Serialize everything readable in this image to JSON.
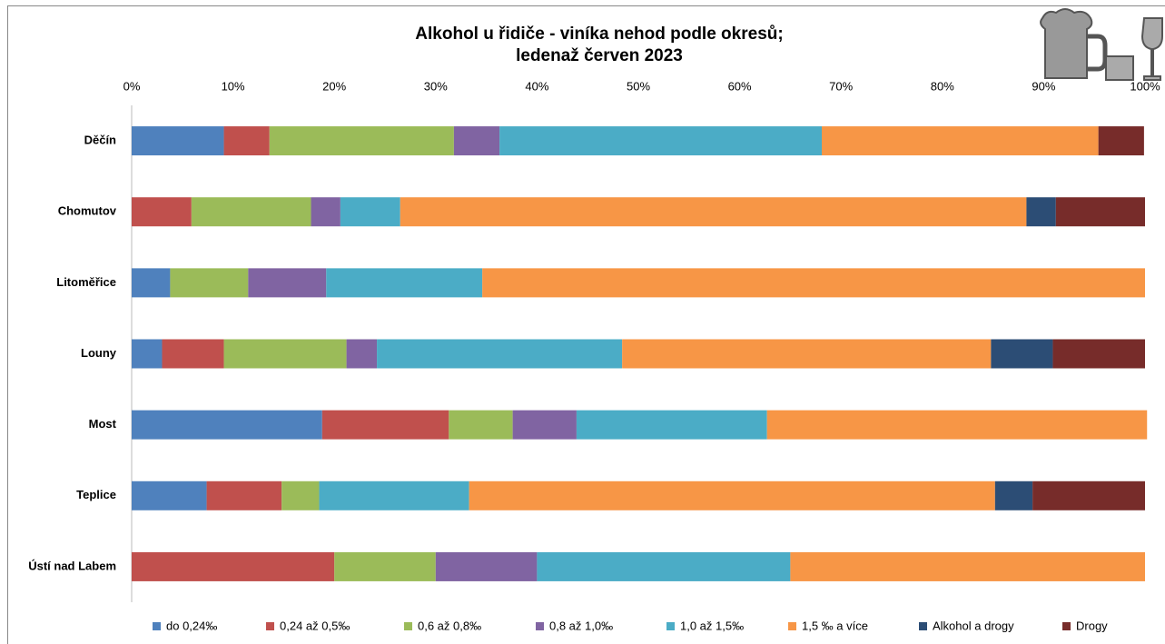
{
  "chart_data": {
    "type": "stacked-bar-horizontal",
    "title": "Alkohol u řidiče - viníka nehod podle okresů;",
    "subtitle": "ledenaž červen 2023",
    "categories": [
      "Děčín",
      "Chomutov",
      "Litoměřice",
      "Louny",
      "Most",
      "Teplice",
      "Ústí nad Labem"
    ],
    "series": [
      {
        "name": "do 0,24‰",
        "color": "#4f81bd",
        "values": [
          9.1,
          0,
          3.8,
          3.0,
          18.8,
          7.4,
          0
        ]
      },
      {
        "name": "0,24 až 0,5‰",
        "color": "#c0504d",
        "values": [
          4.5,
          5.9,
          0,
          6.1,
          12.5,
          7.4,
          20
        ]
      },
      {
        "name": "0,6 až 0,8‰",
        "color": "#9bbb59",
        "values": [
          18.2,
          11.8,
          7.7,
          12.1,
          6.3,
          3.7,
          10
        ]
      },
      {
        "name": "0,8 až 1,0‰",
        "color": "#8064a2",
        "values": [
          4.5,
          2.9,
          7.7,
          3.0,
          6.3,
          0,
          10
        ]
      },
      {
        "name": "1,0 až 1,5‰",
        "color": "#4bacc6",
        "values": [
          31.8,
          5.9,
          15.4,
          24.2,
          18.8,
          14.8,
          25
        ]
      },
      {
        "name": "1,5 ‰ a více",
        "color": "#f79646",
        "values": [
          27.3,
          61.8,
          65.4,
          36.4,
          37.5,
          51.9,
          35
        ]
      },
      {
        "name": "Alkohol a drogy",
        "color": "#2c4d75",
        "values": [
          0,
          2.9,
          0,
          6.1,
          0,
          3.7,
          0
        ]
      },
      {
        "name": "Drogy",
        "color": "#772c2a",
        "values": [
          4.5,
          8.8,
          0,
          9.1,
          0,
          11.1,
          0
        ]
      }
    ],
    "xlim": [
      0,
      100
    ],
    "xticks": [
      {
        "value": 0,
        "label": "0%"
      },
      {
        "value": 10,
        "label": "10%"
      },
      {
        "value": 20,
        "label": "20%"
      },
      {
        "value": 30,
        "label": "30%"
      },
      {
        "value": 40,
        "label": "40%"
      },
      {
        "value": 50,
        "label": "50%"
      },
      {
        "value": 60,
        "label": "60%"
      },
      {
        "value": 70,
        "label": "70%"
      },
      {
        "value": 80,
        "label": "80%"
      },
      {
        "value": 90,
        "label": "90%"
      },
      {
        "value": 100,
        "label": "100%"
      }
    ],
    "legend": "bottom"
  }
}
